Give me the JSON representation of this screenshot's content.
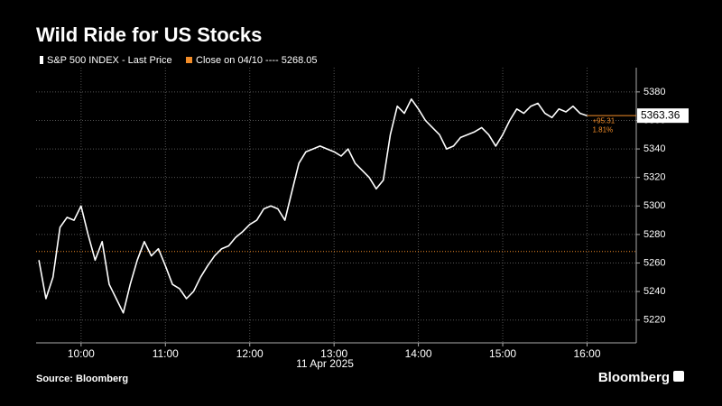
{
  "chart_data": {
    "type": "line",
    "title": "Wild Ride for US Stocks",
    "x_label": "11 Apr 2025",
    "source": "Source: Bloomberg",
    "brand": "Bloomberg",
    "x": [
      "09:30",
      "09:35",
      "09:40",
      "09:45",
      "09:50",
      "09:55",
      "10:00",
      "10:05",
      "10:10",
      "10:15",
      "10:20",
      "10:25",
      "10:30",
      "10:35",
      "10:40",
      "10:45",
      "10:50",
      "10:55",
      "11:00",
      "11:05",
      "11:10",
      "11:15",
      "11:20",
      "11:25",
      "11:30",
      "11:35",
      "11:40",
      "11:45",
      "11:50",
      "11:55",
      "12:00",
      "12:05",
      "12:10",
      "12:15",
      "12:20",
      "12:25",
      "12:30",
      "12:35",
      "12:40",
      "12:45",
      "12:50",
      "12:55",
      "13:00",
      "13:05",
      "13:10",
      "13:15",
      "13:20",
      "13:25",
      "13:30",
      "13:35",
      "13:40",
      "13:45",
      "13:50",
      "13:55",
      "14:00",
      "14:05",
      "14:10",
      "14:15",
      "14:20",
      "14:25",
      "14:30",
      "14:35",
      "14:40",
      "14:45",
      "14:50",
      "14:55",
      "15:00",
      "15:05",
      "15:10",
      "15:15",
      "15:20",
      "15:25",
      "15:30",
      "15:35",
      "15:40",
      "15:45",
      "15:50",
      "15:55",
      "16:00"
    ],
    "series": [
      {
        "name": "S&P 500 INDEX - Last Price",
        "color": "#ffffff",
        "values": [
          5262,
          5235,
          5250,
          5285,
          5292,
          5290,
          5300,
          5280,
          5262,
          5275,
          5245,
          5235,
          5225,
          5245,
          5262,
          5275,
          5265,
          5270,
          5258,
          5245,
          5242,
          5235,
          5240,
          5250,
          5258,
          5265,
          5270,
          5272,
          5278,
          5282,
          5287,
          5290,
          5298,
          5300,
          5298,
          5290,
          5310,
          5330,
          5338,
          5340,
          5342,
          5340,
          5338,
          5335,
          5340,
          5330,
          5325,
          5320,
          5312,
          5318,
          5350,
          5370,
          5365,
          5375,
          5368,
          5360,
          5355,
          5350,
          5340,
          5342,
          5348,
          5350,
          5352,
          5355,
          5350,
          5342,
          5350,
          5360,
          5368,
          5365,
          5370,
          5372,
          5365,
          5362,
          5368,
          5366,
          5370,
          5365,
          5363.36
        ]
      }
    ],
    "reference_line": {
      "label": "Close on 04/10 ---- 5268.05",
      "value": 5268.05,
      "color": "#f28c28"
    },
    "annotations": [
      "+95.31",
      "1.81%"
    ],
    "xlim": [
      "09:28",
      "16:35"
    ],
    "xticks": [
      "10:00",
      "11:00",
      "12:00",
      "13:00",
      "14:00",
      "15:00",
      "16:00"
    ],
    "ylim": [
      5204,
      5397
    ],
    "yticks": [
      5220,
      5240,
      5260,
      5280,
      5300,
      5320,
      5340,
      5360,
      5380
    ],
    "grid": true
  }
}
